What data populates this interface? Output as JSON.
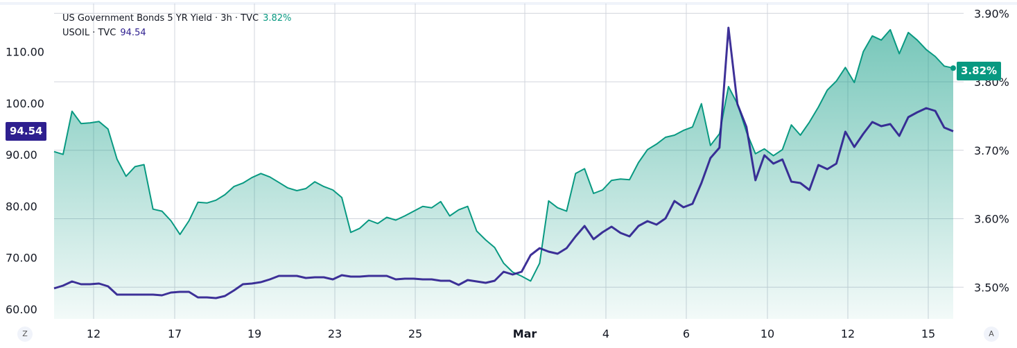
{
  "legend": {
    "series1_label": "US Government Bonds 5 YR Yield · 3h · TVC",
    "series1_value": "3.82%",
    "series2_label": "USOIL · TVC",
    "series2_value": "94.54"
  },
  "price_tags": {
    "left": "94.54",
    "right": "3.82%"
  },
  "corner_buttons": {
    "left": "Z",
    "right": "A"
  },
  "colors": {
    "yield": "#089981",
    "oil": "#2e1f8f",
    "grid": "#d1d4dc"
  },
  "chart_data": {
    "type": "line",
    "grid": true,
    "x_tick_labels": [
      "12",
      "17",
      "19",
      "23",
      "25",
      "Mar",
      "4",
      "6",
      "10",
      "12",
      "15"
    ],
    "left_axis": {
      "ticks": [
        "60.00",
        "70.00",
        "80.00",
        "90.00",
        "100.00",
        "110.00"
      ],
      "range": [
        58,
        118
      ]
    },
    "right_axis": {
      "ticks": [
        "3.50%",
        "3.60%",
        "3.70%",
        "3.80%",
        "3.90%"
      ],
      "range": [
        3.455,
        3.915
      ]
    },
    "series": [
      {
        "name": "US Government Bonds 5 YR Yield · 3h · TVC",
        "axis": "right",
        "style": "area",
        "values": [
          3.698,
          3.694,
          3.757,
          3.739,
          3.74,
          3.742,
          3.731,
          3.687,
          3.662,
          3.676,
          3.679,
          3.614,
          3.611,
          3.597,
          3.577,
          3.597,
          3.624,
          3.623,
          3.627,
          3.635,
          3.647,
          3.652,
          3.66,
          3.666,
          3.661,
          3.653,
          3.645,
          3.641,
          3.644,
          3.654,
          3.647,
          3.642,
          3.631,
          3.58,
          3.586,
          3.598,
          3.593,
          3.602,
          3.598,
          3.604,
          3.611,
          3.618,
          3.616,
          3.625,
          3.604,
          3.613,
          3.618,
          3.582,
          3.569,
          3.558,
          3.535,
          3.522,
          3.516,
          3.509,
          3.535,
          3.626,
          3.616,
          3.611,
          3.666,
          3.673,
          3.637,
          3.642,
          3.656,
          3.658,
          3.657,
          3.682,
          3.701,
          3.709,
          3.719,
          3.722,
          3.729,
          3.734,
          3.768,
          3.707,
          3.724,
          3.793,
          3.768,
          3.727,
          3.695,
          3.702,
          3.692,
          3.701,
          3.737,
          3.722,
          3.741,
          3.763,
          3.788,
          3.801,
          3.821,
          3.799,
          3.844,
          3.867,
          3.861,
          3.876,
          3.841,
          3.872,
          3.861,
          3.847,
          3.837,
          3.823,
          3.82
        ]
      },
      {
        "name": "USOIL · TVC",
        "axis": "left",
        "style": "line",
        "values": [
          64.04,
          64.58,
          65.38,
          64.85,
          64.85,
          64.98,
          64.44,
          62.83,
          62.83,
          62.83,
          62.83,
          62.83,
          62.69,
          63.23,
          63.36,
          63.36,
          62.29,
          62.29,
          62.15,
          62.56,
          63.63,
          64.85,
          64.98,
          65.25,
          65.79,
          66.46,
          66.46,
          66.46,
          66.06,
          66.19,
          66.19,
          65.79,
          66.59,
          66.33,
          66.33,
          66.46,
          66.46,
          66.46,
          65.79,
          65.92,
          65.92,
          65.79,
          65.79,
          65.52,
          65.52,
          64.71,
          65.65,
          65.38,
          65.11,
          65.52,
          67.27,
          66.73,
          67.27,
          70.5,
          71.84,
          71.17,
          70.77,
          71.84,
          74.13,
          76.15,
          73.59,
          74.94,
          76.02,
          74.8,
          74.13,
          76.15,
          77.09,
          76.42,
          77.63,
          81.0,
          79.78,
          80.46,
          84.5,
          89.34,
          91.36,
          114.64,
          99.84,
          95.4,
          85.03,
          89.88,
          88.26,
          89.07,
          84.76,
          84.5,
          83.15,
          87.99,
          87.19,
          88.26,
          94.46,
          91.49,
          94.05,
          96.34,
          95.53,
          95.94,
          93.65,
          97.28,
          98.22,
          99.03,
          98.49,
          95.26,
          94.54
        ]
      }
    ]
  }
}
